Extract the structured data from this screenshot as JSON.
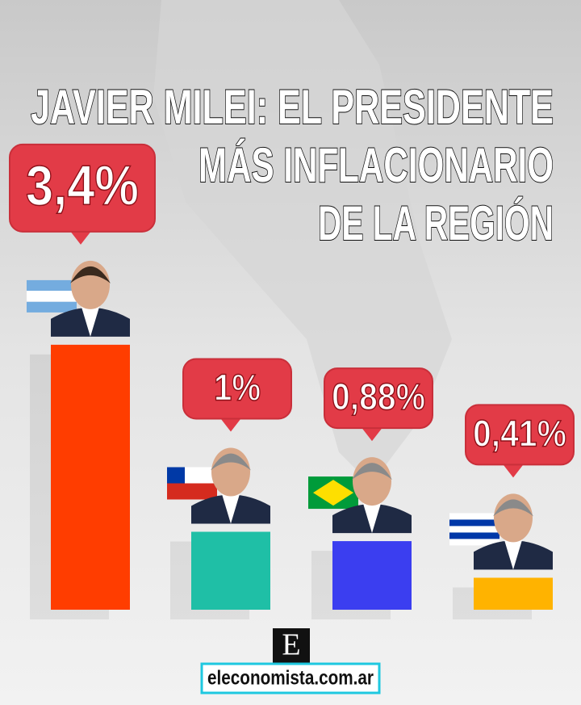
{
  "chart_data": {
    "type": "bar",
    "title_lines": [
      "JAVIER MILEI: EL PRESIDENTE",
      "MÁS INFLACIONARIO",
      "DE LA REGIÓN"
    ],
    "values": [
      3.4,
      1,
      0.88,
      0.41
    ],
    "value_labels": [
      "3,4%",
      "1%",
      "0,88%",
      "0,41%"
    ],
    "colors": [
      "#ff3d00",
      "#1fbfa6",
      "#3b3ef0",
      "#ffb300"
    ]
  },
  "footer": {
    "logo": "E",
    "site": "eleconomista.com.ar"
  }
}
